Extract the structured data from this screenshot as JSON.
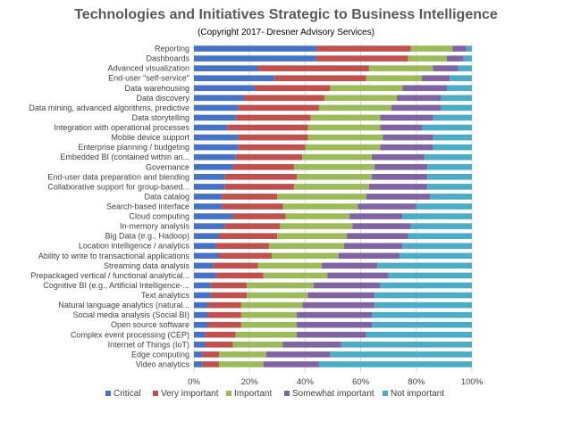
{
  "chart_data": {
    "type": "bar",
    "orientation": "horizontal",
    "stacked": "percent",
    "title": "Technologies and Initiatives Strategic to Business Intelligence",
    "subtitle": "(Copyright 2017- Dresner Advisory Services)",
    "xlim": [
      0,
      100
    ],
    "x_ticks": [
      "0%",
      "20%",
      "40%",
      "60%",
      "80%",
      "100%"
    ],
    "grid": true,
    "legend_position": "bottom",
    "categories": [
      "Reporting",
      "Dashboards",
      "Advanced visualization",
      "End-user \"self-service\"",
      "Data warehousing",
      "Data discovery",
      "Data mining, advanced algorithms, predictive",
      "Data storytelling",
      "Integration with operational processes",
      "Mobile device support",
      "Enterprise planning / budgeting",
      "Embedded BI (contained within an...",
      "Governance",
      "End-user data preparation and blending",
      "Collaborative support for group-based...",
      "Data catalog",
      "Search-based interface",
      "Cloud computing",
      "In-memory analysis",
      "Big Data (e.g., Hadoop)",
      "Location intelligence / analytics",
      "Ability to write to transactional applications",
      "Streaming data analysis",
      "Prepackaged vertical / functional analytical...",
      "Cognitive BI (e.g., Artificial Intelligence-...",
      "Text analytics",
      "Natural language analytics (natural...",
      "Social media analysis (Social BI)",
      "Open source software",
      "Complex event processing (CEP)",
      "Internet of Things (IoT)",
      "Edge computing",
      "Video analytics"
    ],
    "series": [
      {
        "name": "Critical",
        "color": "#4472C4",
        "values": [
          44,
          44,
          23,
          29,
          22,
          18,
          16,
          15,
          12,
          16,
          16,
          15,
          14,
          11,
          11,
          10,
          10,
          14,
          11,
          9,
          8,
          9,
          7,
          8,
          6,
          6,
          5,
          5,
          5,
          4,
          4,
          3,
          3
        ]
      },
      {
        "name": "Very important",
        "color": "#C0504D",
        "values": [
          34,
          33,
          40,
          33,
          27,
          29,
          29,
          27,
          29,
          25,
          24,
          24,
          22,
          26,
          25,
          20,
          22,
          19,
          20,
          21,
          19,
          19,
          16,
          17,
          13,
          13,
          12,
          12,
          12,
          11,
          10,
          6,
          6
        ]
      },
      {
        "name": "Important",
        "color": "#9BBB59",
        "values": [
          15,
          14,
          23,
          20,
          26,
          26,
          26,
          25,
          26,
          27,
          27,
          25,
          29,
          27,
          27,
          32,
          27,
          23,
          26,
          25,
          27,
          24,
          23,
          23,
          24,
          22,
          22,
          20,
          20,
          22,
          18,
          17,
          16
        ]
      },
      {
        "name": "Somewhat important",
        "color": "#8064A2",
        "values": [
          5,
          6,
          9,
          10,
          16,
          16,
          18,
          19,
          15,
          18,
          19,
          19,
          19,
          20,
          21,
          23,
          21,
          19,
          21,
          22,
          21,
          22,
          20,
          22,
          24,
          24,
          26,
          27,
          27,
          25,
          21,
          23,
          20
        ]
      },
      {
        "name": "Not important",
        "color": "#4BACC6",
        "values": [
          2,
          3,
          5,
          8,
          9,
          11,
          11,
          14,
          18,
          14,
          14,
          17,
          16,
          16,
          16,
          15,
          20,
          25,
          22,
          23,
          25,
          26,
          34,
          30,
          33,
          35,
          35,
          36,
          36,
          38,
          47,
          51,
          55
        ]
      }
    ]
  }
}
